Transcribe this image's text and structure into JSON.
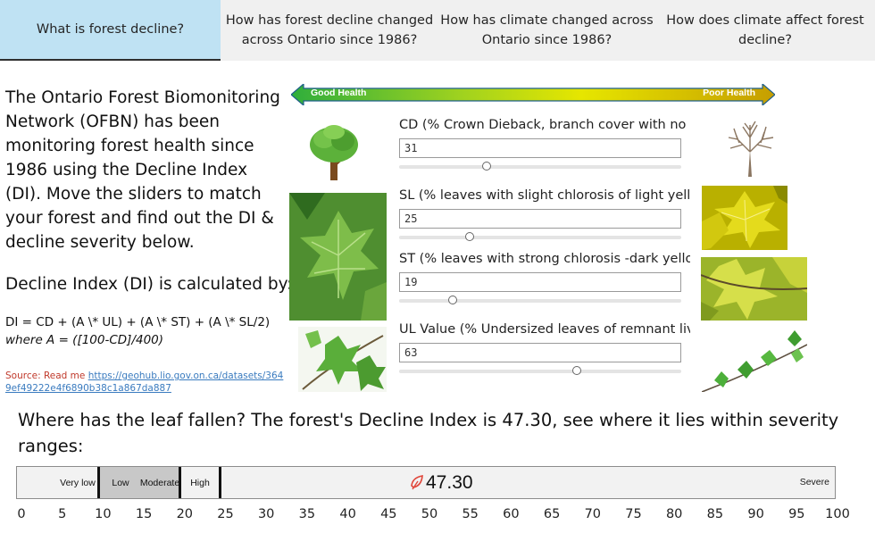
{
  "tabs": [
    {
      "label": "What is forest decline?",
      "active": true
    },
    {
      "label": "How has forest decline changed across Ontario since 1986?",
      "active": false
    },
    {
      "label": "How has climate changed across Ontario since 1986?",
      "active": false
    },
    {
      "label": "How does climate affect forest decline?",
      "active": false
    }
  ],
  "intro": {
    "text": "The Ontario Forest Biomonitoring Network (OFBN) has been monitoring forest health since 1986 using the Decline Index (DI). Move the sliders to match your forest and find out the DI & decline severity below.",
    "formula_title": "Decline Index (DI) is calculated by:",
    "formula": "DI = CD + (A \\* UL) + (A \\* ST) + (A \\* SL/2)",
    "formula_where": "where A = ([100-CD]/400)",
    "source_label": "Source: Read me",
    "source_url": "https://geohub.lio.gov.on.ca/datasets/3649ef49222e4f6890b38c1a867da887"
  },
  "health_scale": {
    "good_label": "Good Health",
    "poor_label": "Poor Health",
    "colors": {
      "good": "#3cb043",
      "mid": "#e8e800",
      "poor": "#c9a200"
    }
  },
  "controls": {
    "cd": {
      "label": "CD (% Crown Dieback, branch cover with no l..",
      "value": "31",
      "slider_fraction": 0.31
    },
    "sl": {
      "label": "SL (% leaves with slight chlorosis of light yello..",
      "value": "25",
      "slider_fraction": 0.25
    },
    "st": {
      "label": "ST (% leaves with strong chlorosis -dark yello..",
      "value": "19",
      "slider_fraction": 0.19
    },
    "ul": {
      "label": "UL Value (% Undersized leaves of remnant liv..",
      "value": "63",
      "slider_fraction": 0.63
    }
  },
  "result": {
    "question": "Where has the leaf fallen?  The forest's Decline Index is 47.30, see where it lies within severity ranges:",
    "di_value": "47.30",
    "severity_labels": {
      "very_low": "Very low",
      "low": "Low",
      "moderate": "Moderate",
      "high": "High",
      "severe": "Severe"
    },
    "axis_ticks": [
      "0",
      "5",
      "10",
      "15",
      "20",
      "25",
      "30",
      "35",
      "40",
      "45",
      "50",
      "55",
      "60",
      "65",
      "70",
      "75",
      "80",
      "85",
      "90",
      "95",
      "100"
    ]
  },
  "icons": {
    "healthy_tree": "healthy-tree-icon",
    "dead_tree": "dead-tree-icon",
    "leaf_marker": "leaf-marker-icon"
  }
}
